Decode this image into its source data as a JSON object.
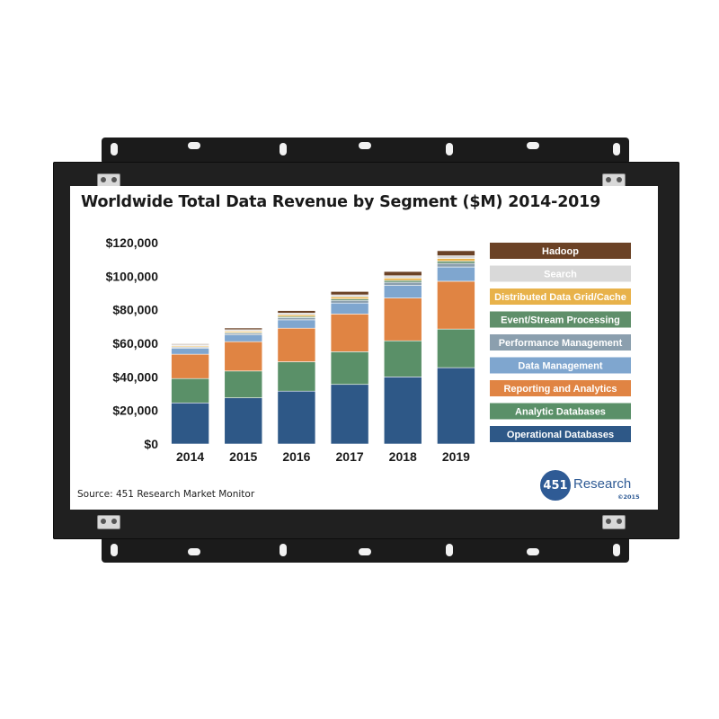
{
  "chart_data": {
    "type": "bar",
    "stacked": true,
    "title": "Worldwide Total Data Revenue by Segment ($M) 2014-2019",
    "categories": [
      "2014",
      "2015",
      "2016",
      "2017",
      "2018",
      "2019"
    ],
    "ylim": [
      0,
      120000
    ],
    "yticks": [
      0,
      20000,
      40000,
      60000,
      80000,
      100000,
      120000
    ],
    "ytick_labels": [
      "$0",
      "$20,000",
      "$40,000",
      "$60,000",
      "$80,000",
      "$100,000",
      "$120,000"
    ],
    "grid": false,
    "legend_position": "right",
    "series": [
      {
        "name": "Operational Databases",
        "color": "#2e5887",
        "values": [
          24500,
          27500,
          31500,
          35500,
          40000,
          45500
        ]
      },
      {
        "name": "Analytic Databases",
        "color": "#5a9068",
        "values": [
          14500,
          16000,
          17500,
          19500,
          21500,
          23000
        ]
      },
      {
        "name": "Reporting and Analytics",
        "color": "#e08443",
        "values": [
          14500,
          17500,
          20000,
          22500,
          25500,
          28500
        ]
      },
      {
        "name": "Data Management",
        "color": "#7fa6cf",
        "values": [
          3500,
          4000,
          5000,
          6500,
          7500,
          8500
        ]
      },
      {
        "name": "Performance Management",
        "color": "#8b9fae",
        "values": [
          700,
          1000,
          1300,
          1600,
          1900,
          2200
        ]
      },
      {
        "name": "Event/Stream Processing",
        "color": "#5f8f6a",
        "values": [
          300,
          500,
          700,
          900,
          1100,
          1300
        ]
      },
      {
        "name": "Distributed Data Grid/Cache",
        "color": "#e8b24a",
        "values": [
          600,
          800,
          1000,
          1200,
          1400,
          1600
        ]
      },
      {
        "name": "Search",
        "color": "#d9d9d9",
        "values": [
          600,
          800,
          1000,
          1200,
          1400,
          1600
        ]
      },
      {
        "name": "Hadoop",
        "color": "#6b4226",
        "values": [
          500,
          1000,
          1500,
          2000,
          2500,
          3000
        ]
      }
    ],
    "legend_order": [
      "Hadoop",
      "Search",
      "Distributed Data Grid/Cache",
      "Event/Stream Processing",
      "Performance Management",
      "Data Management",
      "Reporting and Analytics",
      "Analytic Databases",
      "Operational Databases"
    ]
  },
  "footer": {
    "source": "Source:  451 Research Market Monitor",
    "logo_number": "451",
    "logo_word": "Research",
    "logo_copyright": "©2015"
  }
}
